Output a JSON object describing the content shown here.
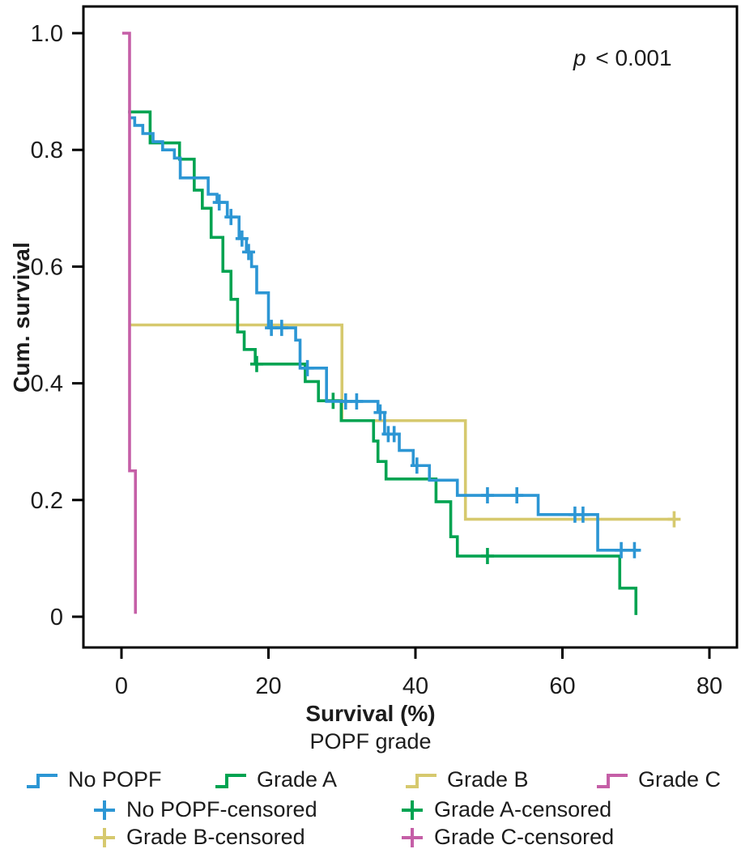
{
  "figure": {
    "annotation_var": "p",
    "annotation_rest": " < 0.001"
  },
  "chart_data": {
    "type": "line",
    "subtype": "kaplan-meier-step",
    "xlabel": "Survival (%)",
    "ylabel": "Cum. survival",
    "legend_title": "POPF grade",
    "annotation": "p < 0.001",
    "xlim": [
      -5.2,
      83.7
    ],
    "ylim": [
      0,
      1.05
    ],
    "xticks": [
      0,
      20,
      40,
      60,
      80
    ],
    "yticks": [
      [
        0,
        "0"
      ],
      [
        0.2,
        "0.2"
      ],
      [
        0.4,
        "0.4"
      ],
      [
        0.6,
        "0.6"
      ],
      [
        0.8,
        "0.8"
      ],
      [
        1.0,
        "1.0"
      ]
    ],
    "grid": false,
    "legend_position": "bottom",
    "series": [
      {
        "name": "No POPF",
        "color": "#2c96d4",
        "steps": [
          [
            1.0,
            0.855
          ],
          [
            1.8,
            0.842
          ],
          [
            2.9,
            0.828
          ],
          [
            4.3,
            0.814
          ],
          [
            5.6,
            0.8
          ],
          [
            7.2,
            0.786
          ],
          [
            8.0,
            0.752
          ],
          [
            11.8,
            0.724
          ],
          [
            13.0,
            0.71
          ],
          [
            14.4,
            0.685
          ],
          [
            16.0,
            0.648
          ],
          [
            17.0,
            0.625
          ],
          [
            17.7,
            0.6
          ],
          [
            18.4,
            0.555
          ],
          [
            20.0,
            0.495
          ],
          [
            23.7,
            0.474
          ],
          [
            24.3,
            0.426
          ],
          [
            27.9,
            0.369
          ],
          [
            34.9,
            0.35
          ],
          [
            35.8,
            0.313
          ],
          [
            37.8,
            0.285
          ],
          [
            39.7,
            0.259
          ],
          [
            41.9,
            0.234
          ],
          [
            45.7,
            0.208
          ],
          [
            56.7,
            0.175
          ],
          [
            64.8,
            0.114
          ],
          [
            70.5,
            0.114
          ]
        ],
        "censors": [
          [
            13.3,
            0.71
          ],
          [
            14.9,
            0.685
          ],
          [
            16.4,
            0.648
          ],
          [
            17.3,
            0.625
          ],
          [
            20.4,
            0.495
          ],
          [
            21.8,
            0.495
          ],
          [
            25.3,
            0.426
          ],
          [
            30.5,
            0.369
          ],
          [
            32.0,
            0.369
          ],
          [
            35.2,
            0.35
          ],
          [
            36.3,
            0.313
          ],
          [
            37.1,
            0.313
          ],
          [
            40.2,
            0.259
          ],
          [
            49.8,
            0.208
          ],
          [
            53.8,
            0.208
          ],
          [
            61.7,
            0.175
          ],
          [
            62.8,
            0.175
          ],
          [
            68.0,
            0.114
          ],
          [
            69.8,
            0.114
          ]
        ]
      },
      {
        "name": "Grade A",
        "color": "#00a351",
        "steps": [
          [
            0.9,
            0.865
          ],
          [
            3.9,
            0.812
          ],
          [
            7.9,
            0.784
          ],
          [
            9.9,
            0.731
          ],
          [
            11.0,
            0.7
          ],
          [
            12.2,
            0.65
          ],
          [
            13.8,
            0.592
          ],
          [
            14.9,
            0.544
          ],
          [
            15.8,
            0.488
          ],
          [
            16.7,
            0.458
          ],
          [
            18.2,
            0.433
          ],
          [
            25.0,
            0.403
          ],
          [
            26.8,
            0.37
          ],
          [
            29.9,
            0.336
          ],
          [
            34.3,
            0.301
          ],
          [
            34.9,
            0.266
          ],
          [
            36.0,
            0.236
          ],
          [
            42.8,
            0.197
          ],
          [
            44.8,
            0.137
          ],
          [
            45.7,
            0.104
          ],
          [
            67.8,
            0.049
          ],
          [
            70.0,
            0.003
          ]
        ],
        "censors": [
          [
            18.4,
            0.433
          ],
          [
            28.8,
            0.37
          ],
          [
            49.8,
            0.104
          ]
        ]
      },
      {
        "name": "Grade B",
        "color": "#d6c96e",
        "steps": [
          [
            1.0,
            0.5
          ],
          [
            30.0,
            0.336
          ],
          [
            46.8,
            0.167
          ],
          [
            75.2,
            0.167
          ]
        ],
        "censors": [
          [
            75.2,
            0.167
          ]
        ]
      },
      {
        "name": "Grade C",
        "color": "#c55fa7",
        "steps": [
          [
            0.1,
            1.0
          ],
          [
            1.1,
            0.25
          ],
          [
            1.9,
            0.005
          ]
        ],
        "censors": []
      }
    ],
    "censored_labels": [
      "No POPF-censored",
      "Grade A-censored",
      "Grade B-censored",
      "Grade C-censored"
    ]
  }
}
